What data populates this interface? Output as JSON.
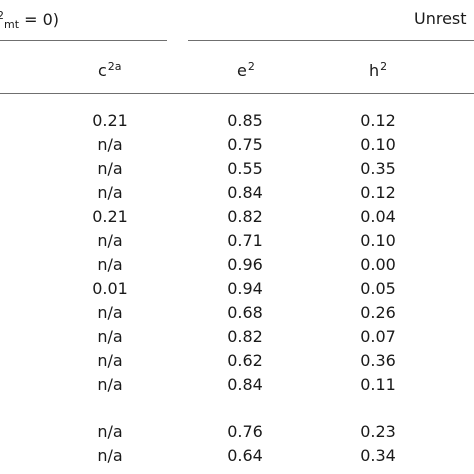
{
  "header": {
    "left_prefix": "2",
    "left_sub": "mt",
    "left_suffix": " = 0)",
    "right_label": "Unrest"
  },
  "columns": [
    {
      "base": "c",
      "sup": "2a"
    },
    {
      "base": "e",
      "sup": "2"
    },
    {
      "base": "h",
      "sup": "2"
    }
  ],
  "rows": [
    [
      "0.21",
      "0.85",
      "0.12"
    ],
    [
      "n/a",
      "0.75",
      "0.10"
    ],
    [
      "n/a",
      "0.55",
      "0.35"
    ],
    [
      "n/a",
      "0.84",
      "0.12"
    ],
    [
      "0.21",
      "0.82",
      "0.04"
    ],
    [
      "n/a",
      "0.71",
      "0.10"
    ],
    [
      "n/a",
      "0.96",
      "0.00"
    ],
    [
      "0.01",
      "0.94",
      "0.05"
    ],
    [
      "n/a",
      "0.68",
      "0.26"
    ],
    [
      "n/a",
      "0.82",
      "0.07"
    ],
    [
      "n/a",
      "0.62",
      "0.36"
    ],
    [
      "n/a",
      "0.84",
      "0.11"
    ],
    [
      "n/a",
      "0.76",
      "0.23"
    ],
    [
      "n/a",
      "0.64",
      "0.34"
    ]
  ]
}
